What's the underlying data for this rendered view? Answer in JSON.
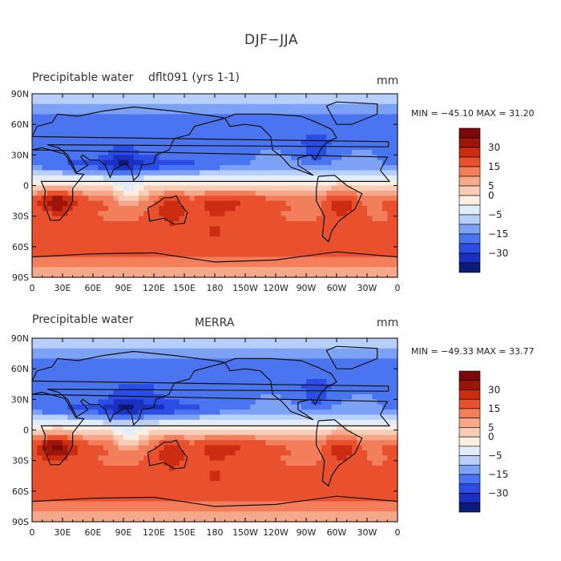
{
  "figure_title": "DJF−JJA",
  "colors": {
    "levels": [
      "#0c1a78",
      "#1b2fc0",
      "#2b4de6",
      "#4a74f0",
      "#7da2f5",
      "#b7cff9",
      "#e1ecfc",
      "#fdeee2",
      "#f9cdb5",
      "#f6a98a",
      "#f27e5b",
      "#e8502e",
      "#cc2c12",
      "#9c140a",
      "#7a0a0a"
    ],
    "land_outline": "#111111"
  },
  "chart_data": [
    {
      "type": "heatmap",
      "title": "Precipitable water  dflt091 (yrs 1-1)",
      "title_left": "Precipitable water",
      "title_center": "dflt091 (yrs 1-1)",
      "units": "mm",
      "stats": "MIN = −45.10 MAX =  31.20",
      "min": -45.1,
      "max": 31.2,
      "xlabel": "",
      "ylabel": "",
      "x_ticks": [
        "0",
        "30E",
        "60E",
        "90E",
        "120E",
        "150E",
        "180",
        "150W",
        "120W",
        "90W",
        "60W",
        "30W",
        "0"
      ],
      "y_ticks": [
        "90N",
        "60N",
        "30N",
        "0",
        "30S",
        "60S",
        "90S"
      ],
      "colorbar_labels": [
        "30",
        "15",
        "5",
        "0",
        "−5",
        "−15",
        "−30"
      ],
      "colorbar_levels": [
        -35,
        -30,
        -25,
        -20,
        -15,
        -10,
        -5,
        0,
        5,
        10,
        15,
        20,
        25,
        30,
        35
      ]
    },
    {
      "type": "heatmap",
      "title": "Precipitable water  MERRA",
      "title_left": "Precipitable water",
      "title_center": "MERRA",
      "units": "mm",
      "stats": "MIN = −49.33 MAX =  33.77",
      "min": -49.33,
      "max": 33.77,
      "xlabel": "",
      "ylabel": "",
      "x_ticks": [
        "0",
        "30E",
        "60E",
        "90E",
        "120E",
        "150E",
        "180",
        "150W",
        "120W",
        "90W",
        "60W",
        "30W",
        "0"
      ],
      "y_ticks": [
        "90N",
        "60N",
        "30N",
        "0",
        "30S",
        "60S",
        "90S"
      ],
      "colorbar_labels": [
        "30",
        "15",
        "5",
        "0",
        "−5",
        "−15",
        "−30"
      ],
      "colorbar_levels": [
        -35,
        -30,
        -25,
        -20,
        -15,
        -10,
        -5,
        0,
        5,
        10,
        15,
        20,
        25,
        30,
        35
      ]
    }
  ]
}
